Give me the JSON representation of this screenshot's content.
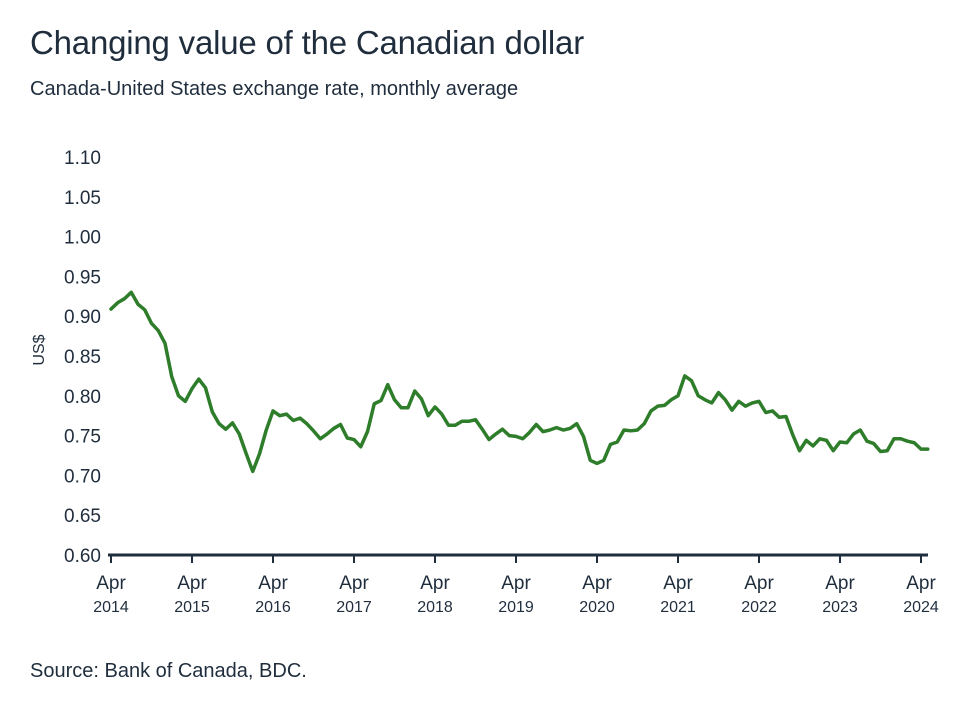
{
  "title": "Changing value of the Canadian dollar",
  "subtitle": "Canada-United States exchange rate, monthly average",
  "source": "Source: Bank of Canada, BDC.",
  "colors": {
    "line": "#2e7d2a",
    "axis": "#1f2d3d",
    "text": "#1f2d3d"
  },
  "chart_data": {
    "type": "line",
    "title": "Changing value of the Canadian dollar",
    "subtitle": "Canada-United States exchange rate, monthly average",
    "ylabel": "US$",
    "xlabel": "",
    "ylim": [
      0.6,
      1.1
    ],
    "yticks": [
      "1.10",
      "1.05",
      "1.00",
      "0.95",
      "0.90",
      "0.85",
      "0.80",
      "0.75",
      "0.70",
      "0.65",
      "0.60"
    ],
    "xticks": [
      {
        "month": "Apr",
        "year": "2014"
      },
      {
        "month": "Apr",
        "year": "2015"
      },
      {
        "month": "Apr",
        "year": "2016"
      },
      {
        "month": "Apr",
        "year": "2017"
      },
      {
        "month": "Apr",
        "year": "2018"
      },
      {
        "month": "Apr",
        "year": "2019"
      },
      {
        "month": "Apr",
        "year": "2020"
      },
      {
        "month": "Apr",
        "year": "2021"
      },
      {
        "month": "Apr",
        "year": "2022"
      },
      {
        "month": "Apr",
        "year": "2023"
      },
      {
        "month": "Apr",
        "year": "2024"
      }
    ],
    "grid": false,
    "x_start": "2014-04",
    "x_end": "2024-05",
    "values": [
      0.909,
      0.917,
      0.922,
      0.93,
      0.915,
      0.908,
      0.891,
      0.882,
      0.866,
      0.824,
      0.8,
      0.793,
      0.809,
      0.821,
      0.81,
      0.78,
      0.765,
      0.758,
      0.766,
      0.752,
      0.728,
      0.705,
      0.727,
      0.757,
      0.781,
      0.775,
      0.777,
      0.769,
      0.772,
      0.765,
      0.756,
      0.746,
      0.752,
      0.759,
      0.764,
      0.747,
      0.745,
      0.736,
      0.755,
      0.79,
      0.794,
      0.814,
      0.795,
      0.785,
      0.785,
      0.806,
      0.796,
      0.775,
      0.786,
      0.777,
      0.763,
      0.763,
      0.768,
      0.768,
      0.77,
      0.758,
      0.745,
      0.752,
      0.758,
      0.75,
      0.749,
      0.746,
      0.754,
      0.764,
      0.755,
      0.757,
      0.76,
      0.757,
      0.759,
      0.765,
      0.749,
      0.719,
      0.715,
      0.719,
      0.739,
      0.742,
      0.757,
      0.756,
      0.757,
      0.765,
      0.781,
      0.787,
      0.788,
      0.795,
      0.8,
      0.825,
      0.819,
      0.8,
      0.795,
      0.791,
      0.804,
      0.795,
      0.782,
      0.793,
      0.787,
      0.791,
      0.793,
      0.779,
      0.781,
      0.773,
      0.774,
      0.751,
      0.731,
      0.744,
      0.737,
      0.746,
      0.744,
      0.731,
      0.742,
      0.741,
      0.752,
      0.757,
      0.743,
      0.74,
      0.73,
      0.731,
      0.746,
      0.746,
      0.743,
      0.741,
      0.733,
      0.733
    ]
  }
}
